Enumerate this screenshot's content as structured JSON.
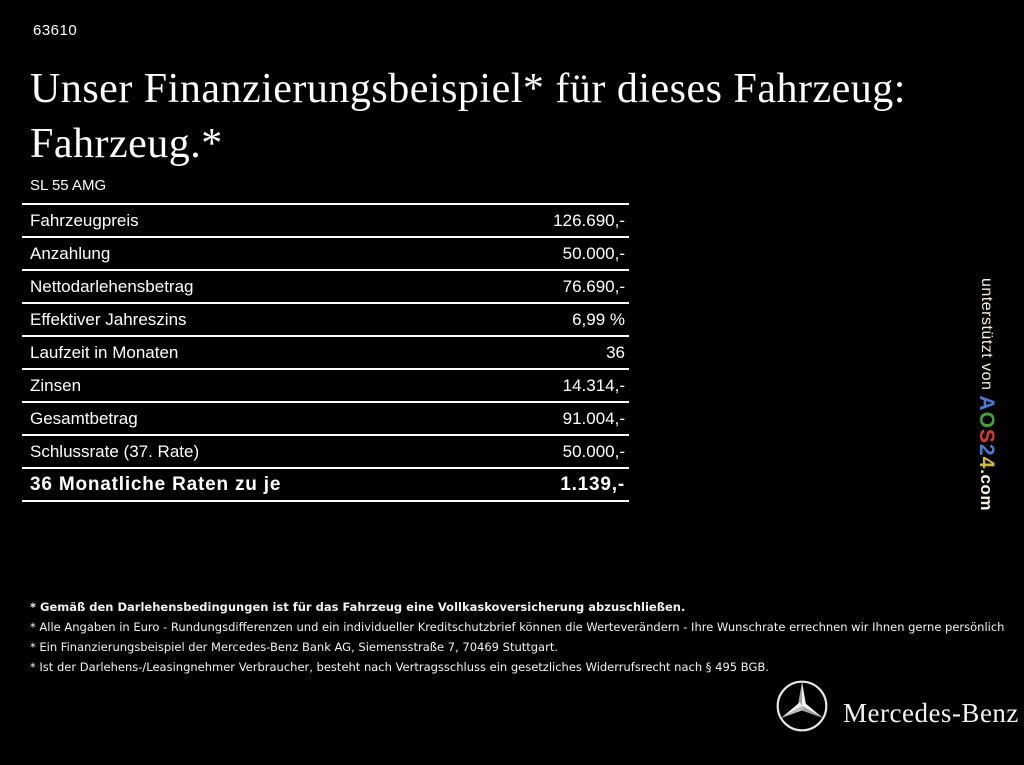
{
  "page": {
    "reference_number": "63610",
    "background_color": "#000000",
    "text_color": "#ffffff"
  },
  "title": {
    "line1": "Unser Finanzierungsbeispiel* für dieses Fahrzeug:",
    "line2": "Fahrzeug.*"
  },
  "vehicle": {
    "model": "SL 55 AMG"
  },
  "finance_table": {
    "rows": [
      {
        "label": "Fahrzeugpreis",
        "value": "126.690,-"
      },
      {
        "label": "Anzahlung",
        "value": "50.000,-"
      },
      {
        "label": "Nettodarlehensbetrag",
        "value": "76.690,-"
      },
      {
        "label": "Effektiver Jahreszins",
        "value": "6,99 %"
      },
      {
        "label": "Laufzeit in Monaten",
        "value": "36"
      },
      {
        "label": "Zinsen",
        "value": "14.314,-"
      },
      {
        "label": "Gesamtbetrag",
        "value": "91.004,-"
      },
      {
        "label": "Schlussrate (37. Rate)",
        "value": "50.000,-"
      },
      {
        "label": "36 Monatliche Raten zu je",
        "value": "1.139,-"
      }
    ]
  },
  "footnotes": {
    "items": [
      "* Gemäß den Darlehensbedingungen ist für das Fahrzeug eine Vollkaskoversicherung abzuschließen.",
      "* Alle Angaben in Euro - Rundungsdifferenzen und ein individueller Kreditschutzbrief können die Werteverändern - Ihre Wunschrate errechnen wir Ihnen gerne persönlich",
      "* Ein Finanzierungsbeispiel der Mercedes-Benz Bank AG, Siemensstraße 7, 70469 Stuttgart.",
      "* Ist der Darlehens-/Leasingnehmer Verbraucher, besteht nach Vertragsschluss ein gesetzliches Widerrufsrecht nach § 495 BGB."
    ]
  },
  "side_banner": {
    "prefix": "unterstützt von ",
    "brand_letters": [
      {
        "char": "A",
        "color": "#4a7bd4"
      },
      {
        "char": "O",
        "color": "#44a13f"
      },
      {
        "char": "S",
        "color": "#d93a35"
      },
      {
        "char": "2",
        "color": "#4a7bd4"
      },
      {
        "char": "4",
        "color": "#cdbd3e"
      }
    ],
    "suffix": ".com"
  },
  "footer": {
    "wordmark": "Mercedes-Benz",
    "star_icon": "mercedes-star-icon",
    "star_color": "#e8e8e8"
  }
}
